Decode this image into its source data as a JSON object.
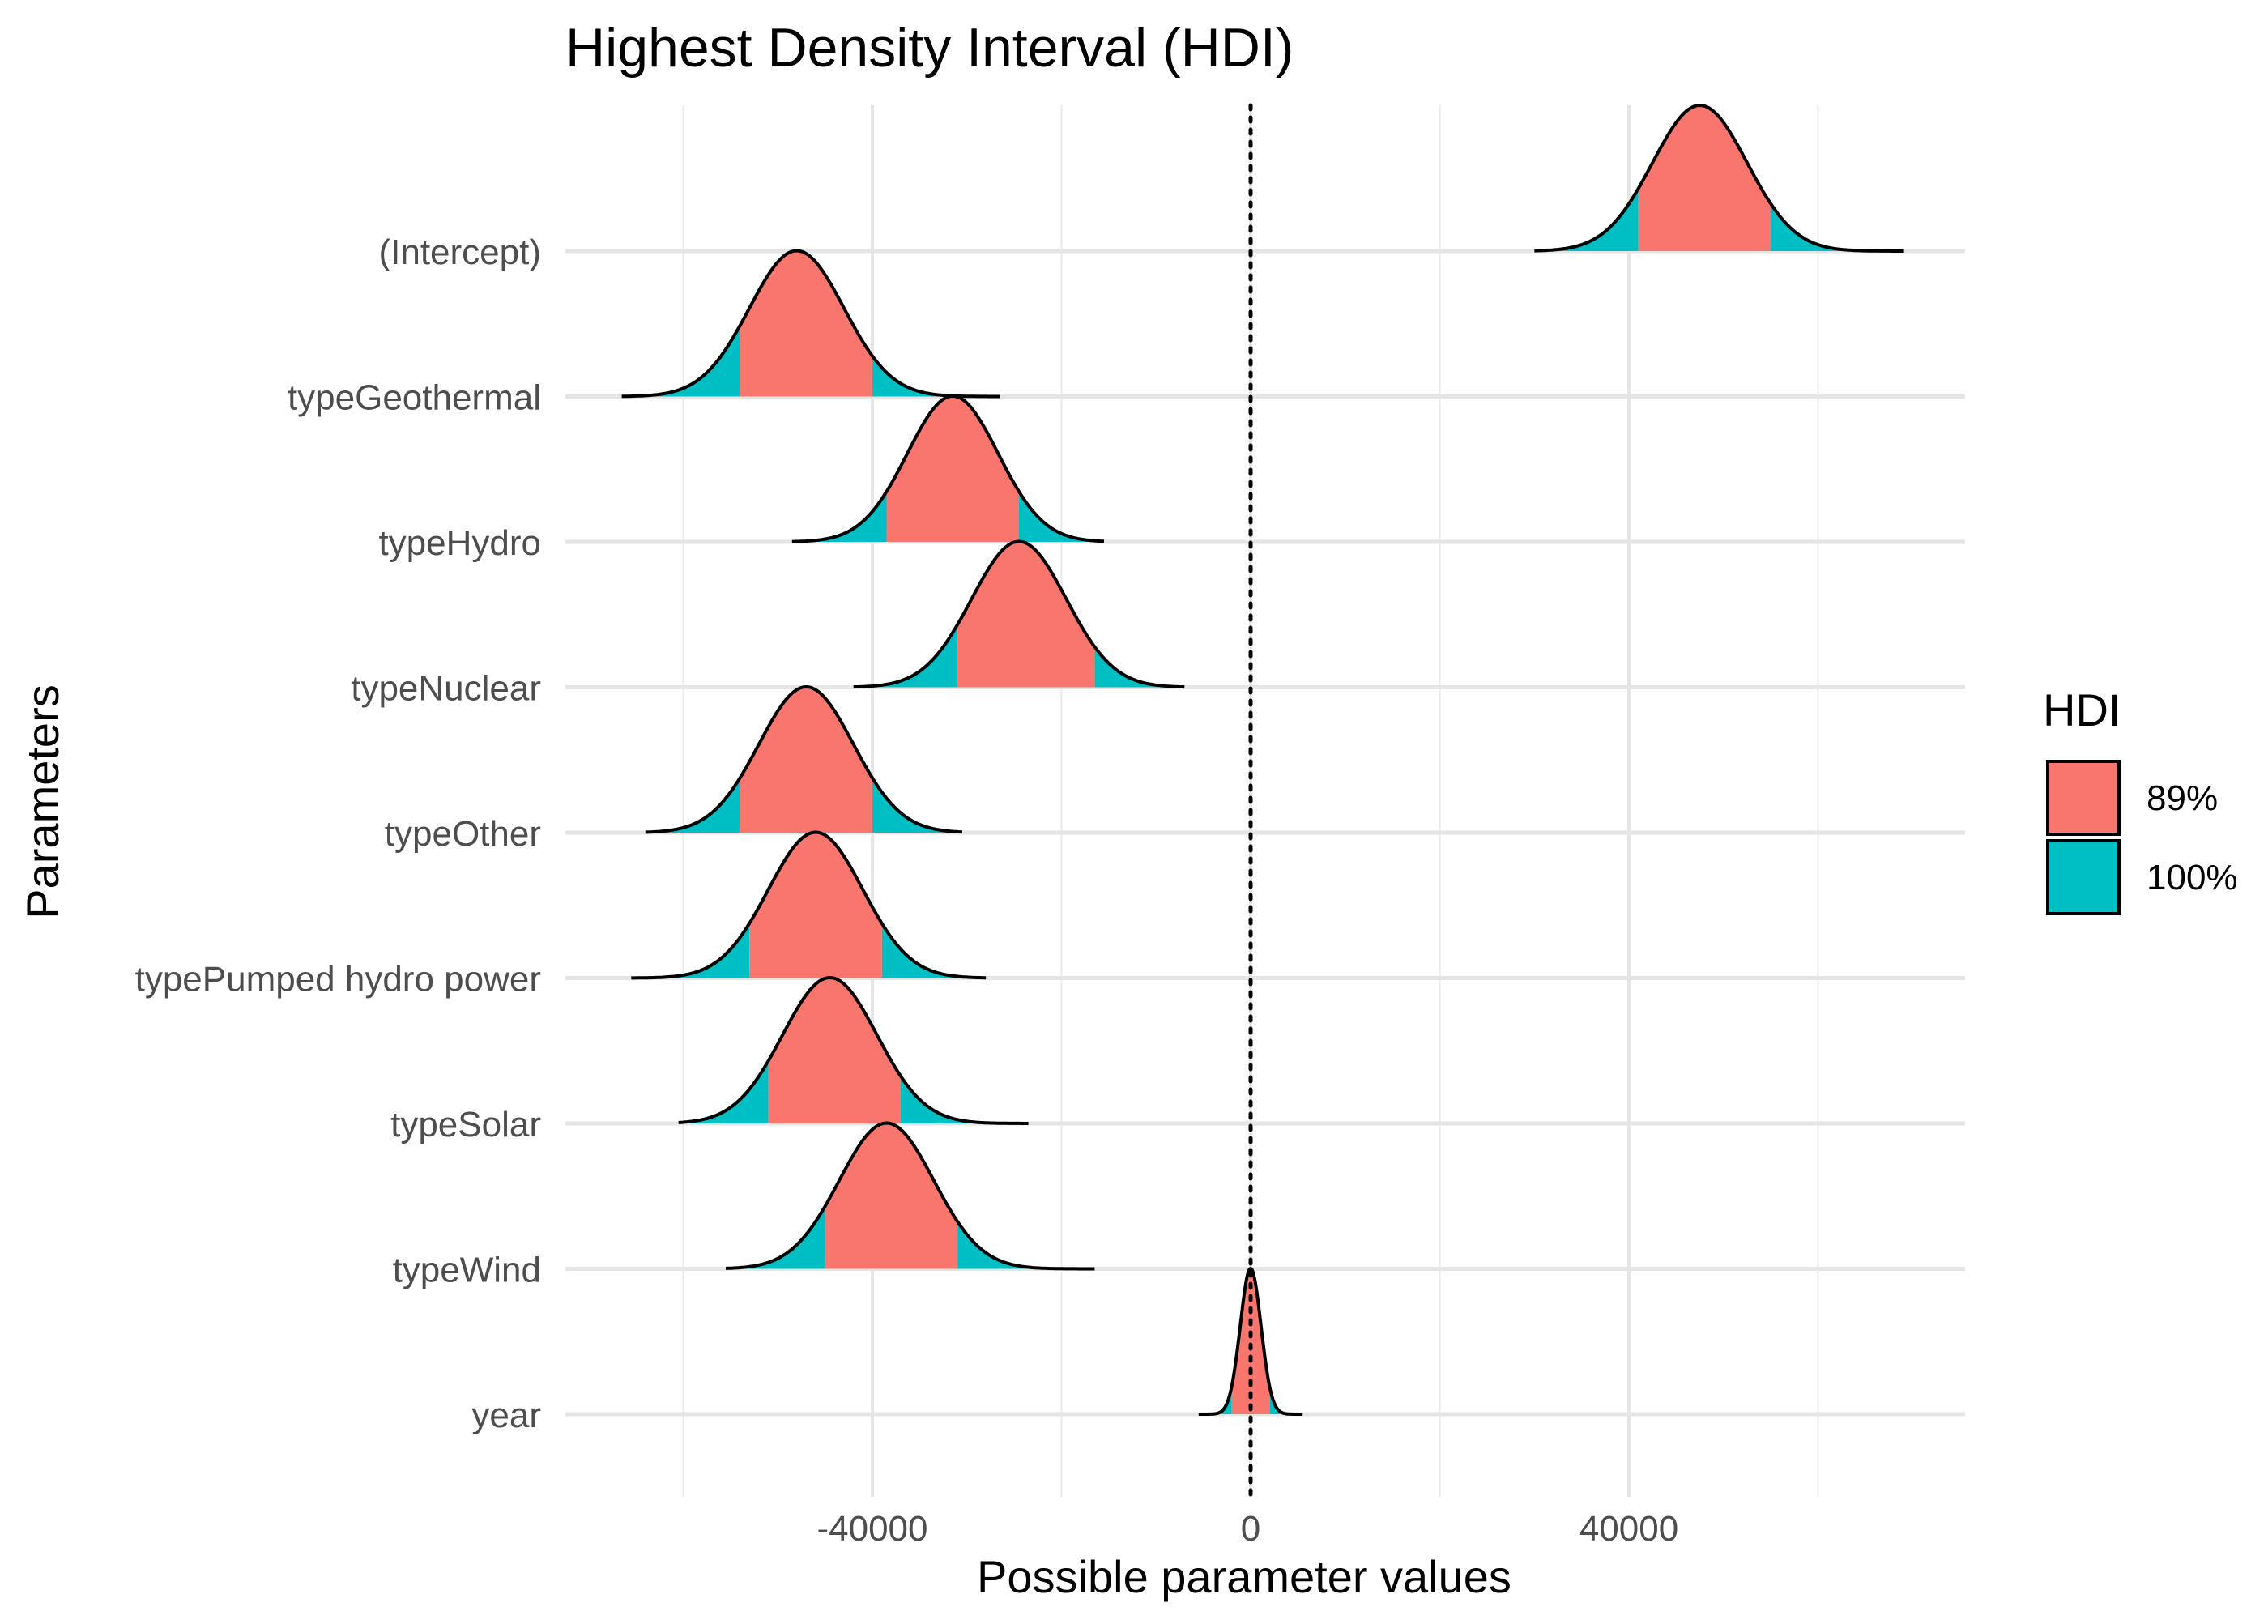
{
  "chart_data": {
    "type": "ridgeline-density",
    "title": "Highest Density Interval (HDI)",
    "xlabel": "Possible parameter values",
    "ylabel": "Parameters",
    "xlim": [
      -75000,
      75000
    ],
    "x_ticks": [
      -40000,
      0,
      40000
    ],
    "x_tick_labels": [
      "-40000",
      "0",
      "40000"
    ],
    "x_minor_grid": [
      -60000,
      -20000,
      20000,
      60000
    ],
    "reference_line": 0,
    "grid": true,
    "legend": {
      "title": "HDI",
      "placement": "right",
      "entries": [
        {
          "label": "89%",
          "color": "#F8766D"
        },
        {
          "label": "100%",
          "color": "#00BFC4"
        }
      ]
    },
    "parameters": [
      {
        "name": "(Intercept)",
        "min": 30000,
        "max": 69000,
        "mode": 47500,
        "sd": 5000,
        "hdi89": [
          41000,
          55000
        ]
      },
      {
        "name": "typeGeothermal",
        "min": -66500,
        "max": -26500,
        "mode": -48000,
        "sd": 5000,
        "hdi89": [
          -54000,
          -40000
        ]
      },
      {
        "name": "typeHydro",
        "min": -48500,
        "max": -15500,
        "mode": -31500,
        "sd": 4800,
        "hdi89": [
          -38500,
          -24500
        ]
      },
      {
        "name": "typeNuclear",
        "min": -42000,
        "max": -7000,
        "mode": -24500,
        "sd": 5000,
        "hdi89": [
          -31000,
          -16500
        ]
      },
      {
        "name": "typeOther",
        "min": -64000,
        "max": -30500,
        "mode": -47000,
        "sd": 5000,
        "hdi89": [
          -54000,
          -40000
        ]
      },
      {
        "name": "typePumped hydro power",
        "min": -65500,
        "max": -28000,
        "mode": -46000,
        "sd": 5000,
        "hdi89": [
          -53000,
          -39000
        ]
      },
      {
        "name": "typeSolar",
        "min": -60500,
        "max": -23500,
        "mode": -44500,
        "sd": 5000,
        "hdi89": [
          -51000,
          -37000
        ]
      },
      {
        "name": "typeWind",
        "min": -55500,
        "max": -16500,
        "mode": -38500,
        "sd": 5000,
        "hdi89": [
          -45000,
          -31000
        ]
      },
      {
        "name": "year",
        "min": -5500,
        "max": 5500,
        "mode": 0,
        "sd": 1100,
        "hdi89": [
          -2000,
          2000
        ]
      }
    ]
  }
}
